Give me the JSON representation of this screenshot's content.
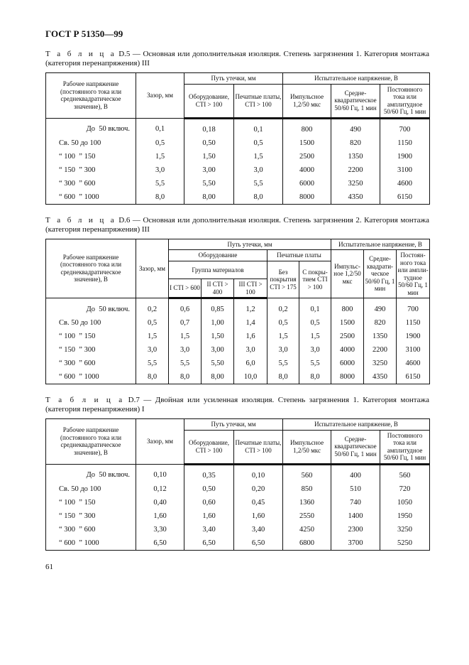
{
  "header": "ГОСТ Р 51350—99",
  "page_number": "61",
  "row_labels": [
    "До  50 включ.",
    "Св. 50 до 100",
    "“ 100  ” 150",
    "“ 150  ” 300",
    "“ 300  ” 600",
    "“ 600  ” 1000"
  ],
  "t5": {
    "caption_prefix": "Т а б л и ц а",
    "caption": " D.5 — Основная или дополнительная изоляция. Степень загрязнения 1. Категория монтажа (категория перенапряжения) III",
    "h_voltage": "Рабочее напряжение (постоянного тока или среднеквадратическое значение), В",
    "h_gap": "Зазор, мм",
    "h_creep": "Путь утечки, мм",
    "h_test": "Испытательное напряжение, В",
    "h_equip": "Оборудование, CTI > 100",
    "h_pcb": "Печатные платы, CTI > 100",
    "h_imp": "Импульсное 1,2/50 мкс",
    "h_rms": "Средне-квадратическое 50/60 Гц, 1 мин",
    "h_dc": "Постоянного тока или амплитудное 50/60 Гц, 1 мин",
    "rows": [
      [
        "0,1",
        "0,18",
        "0,1",
        "800",
        "490",
        "700"
      ],
      [
        "0,5",
        "0,50",
        "0,5",
        "1500",
        "820",
        "1150"
      ],
      [
        "1,5",
        "1,50",
        "1,5",
        "2500",
        "1350",
        "1900"
      ],
      [
        "3,0",
        "3,00",
        "3,0",
        "4000",
        "2200",
        "3100"
      ],
      [
        "5,5",
        "5,50",
        "5,5",
        "6000",
        "3250",
        "4600"
      ],
      [
        "8,0",
        "8,00",
        "8,0",
        "8000",
        "4350",
        "6150"
      ]
    ]
  },
  "t6": {
    "caption_prefix": "Т а б л и ц а",
    "caption": " D.6 — Основная или дополнительная изоляция. Степень загрязнения 2. Категория монтажа (категория перенапряжения) III",
    "h_voltage": "Рабочее напряжение (постоянного тока или среднеквадратическое значение), В",
    "h_gap": "Зазор, мм",
    "h_creep": "Путь утечки, мм",
    "h_test": "Испытательное напряжение, В",
    "h_equip": "Оборудование",
    "h_pcb": "Печатные платы",
    "h_group": "Группа материалов",
    "h_g1": "I CTI > 600",
    "h_g2": "II CTI > 400",
    "h_g3": "III CTI > 100",
    "h_bare": "Без покрытия CTI > 175",
    "h_coated": "С покры-тием CTI > 100",
    "h_imp": "Импульс-ное 1,2/50 мкс",
    "h_rms": "Средне-квадрати-ческое 50/60 Гц, 1 мин",
    "h_dc": "Постоян-ного тока или ампли-тудное 50/60 Гц, 1 мин",
    "rows": [
      [
        "0,2",
        "0,6",
        "0,85",
        "1,2",
        "0,2",
        "0,1",
        "800",
        "490",
        "700"
      ],
      [
        "0,5",
        "0,7",
        "1,00",
        "1,4",
        "0,5",
        "0,5",
        "1500",
        "820",
        "1150"
      ],
      [
        "1,5",
        "1,5",
        "1,50",
        "1,6",
        "1,5",
        "1,5",
        "2500",
        "1350",
        "1900"
      ],
      [
        "3,0",
        "3,0",
        "3,00",
        "3,0",
        "3,0",
        "3,0",
        "4000",
        "2200",
        "3100"
      ],
      [
        "5,5",
        "5,5",
        "5,50",
        "6,0",
        "5,5",
        "5,5",
        "6000",
        "3250",
        "4600"
      ],
      [
        "8,0",
        "8,0",
        "8,00",
        "10,0",
        "8,0",
        "8,0",
        "8000",
        "4350",
        "6150"
      ]
    ]
  },
  "t7": {
    "caption_prefix": "Т а б л и ц а",
    "caption": " D.7 — Двойная   или   усиленная   изоляция. Степень загрязнения 1. Категория монтажа (категория перенапряжения) I",
    "h_voltage": "Рабочее напряжение (постоянного тока или среднеквадратическое значение), В",
    "h_gap": "Зазор, мм",
    "h_creep": "Путь утечки, мм",
    "h_test": "Испытательное напряжение, В",
    "h_equip": "Оборудование, CTI > 100",
    "h_pcb": "Печатные платы, CTI > 100",
    "h_imp": "Импульсное 1,2/50 мкс",
    "h_rms": "Средне-квадратическое 50/60 Гц, 1 мин",
    "h_dc": "Постоянного тока или амплитудное 50/60 Гц, 1 мин",
    "rows": [
      [
        "0,10",
        "0,35",
        "0,10",
        "560",
        "400",
        "560"
      ],
      [
        "0,12",
        "0,50",
        "0,20",
        "850",
        "510",
        "720"
      ],
      [
        "0,40",
        "0,60",
        "0,45",
        "1360",
        "740",
        "1050"
      ],
      [
        "1,60",
        "1,60",
        "1,60",
        "2550",
        "1400",
        "1950"
      ],
      [
        "3,30",
        "3,40",
        "3,40",
        "4250",
        "2300",
        "3250"
      ],
      [
        "6,50",
        "6,50",
        "6,50",
        "6800",
        "3700",
        "5250"
      ]
    ]
  }
}
